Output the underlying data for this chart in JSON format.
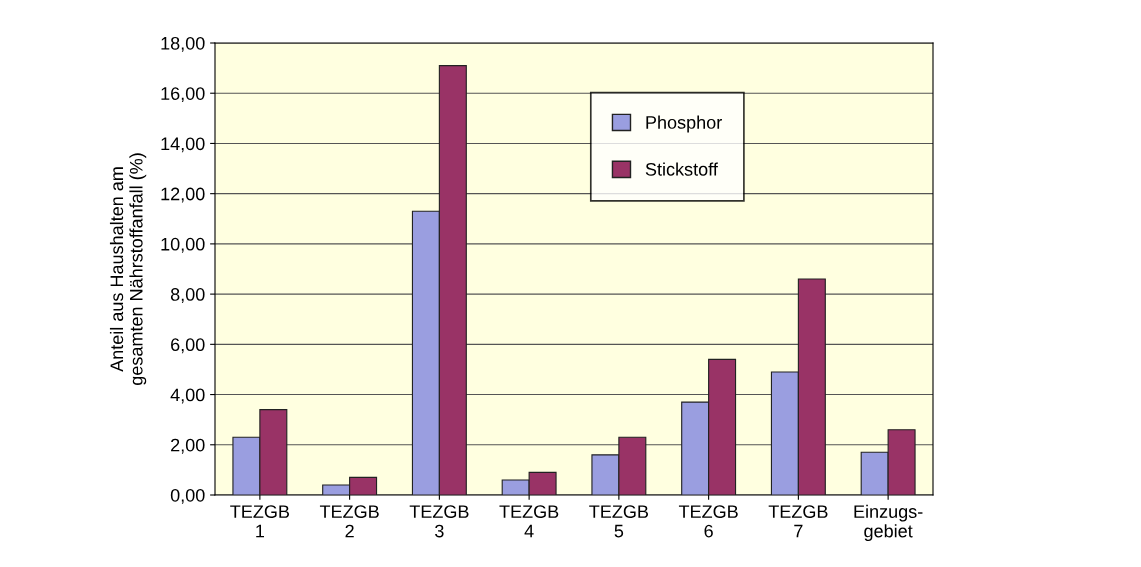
{
  "chart_data": {
    "type": "bar",
    "ylabel": "Anteil aus Haushalten am\ngesamten Nährstoffanfall (%)",
    "categories": [
      "TEZGB\n1",
      "TEZGB\n2",
      "TEZGB\n3",
      "TEZGB\n4",
      "TEZGB\n5",
      "TEZGB\n6",
      "TEZGB\n7",
      "Einzugs-\ngebiet"
    ],
    "series": [
      {
        "name": "Phosphor",
        "color": "#9a9ee0",
        "values": [
          2.3,
          0.4,
          11.3,
          0.6,
          1.6,
          3.7,
          4.9,
          1.7
        ]
      },
      {
        "name": "Stickstoff",
        "color": "#993366",
        "values": [
          3.4,
          0.7,
          17.1,
          0.9,
          2.3,
          5.4,
          8.6,
          2.6
        ]
      }
    ],
    "ylim": [
      0,
      18
    ],
    "yticks": [
      {
        "value": 0,
        "label": "0,00"
      },
      {
        "value": 2,
        "label": "2,00"
      },
      {
        "value": 4,
        "label": "4,00"
      },
      {
        "value": 6,
        "label": "6,00"
      },
      {
        "value": 8,
        "label": "8,00"
      },
      {
        "value": 10,
        "label": "10,00"
      },
      {
        "value": 12,
        "label": "12,00"
      },
      {
        "value": 14,
        "label": "14,00"
      },
      {
        "value": 16,
        "label": "16,00"
      },
      {
        "value": 18,
        "label": "18,00"
      }
    ],
    "grid": "y",
    "legend": "top"
  }
}
